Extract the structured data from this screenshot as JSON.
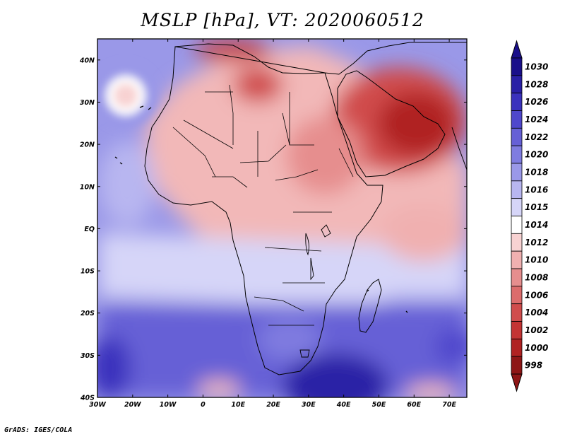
{
  "title": "MSLP [hPa], VT: 2020060512",
  "credit": "GrADS: IGES/COLA",
  "map": {
    "projection": "latlon",
    "lon_range": [
      -30,
      75
    ],
    "lat_range": [
      -40,
      45
    ],
    "x_ticks": [
      "30W",
      "20W",
      "10W",
      "0",
      "10E",
      "20E",
      "30E",
      "40E",
      "50E",
      "60E",
      "70E"
    ],
    "x_tick_values": [
      -30,
      -20,
      -10,
      0,
      10,
      20,
      30,
      40,
      50,
      60,
      70
    ],
    "y_ticks": [
      "40N",
      "30N",
      "20N",
      "10N",
      "EQ",
      "10S",
      "20S",
      "30S",
      "40S"
    ],
    "y_tick_values": [
      40,
      30,
      20,
      10,
      0,
      -10,
      -20,
      -30,
      -40
    ]
  },
  "colorbar": {
    "labels": [
      "1030",
      "1028",
      "1026",
      "1024",
      "1022",
      "1020",
      "1018",
      "1016",
      "1015",
      "1014",
      "1012",
      "1010",
      "1008",
      "1006",
      "1004",
      "1002",
      "1000",
      "998"
    ],
    "colors": [
      "#1a0f8a",
      "#2a20a6",
      "#3b32bd",
      "#4f47cc",
      "#6660d6",
      "#7f7ce0",
      "#9a98e8",
      "#b8b6f0",
      "#d6d5f8",
      "#ffffff",
      "#f8d2d2",
      "#f0b0b0",
      "#e68e8e",
      "#dc6c6c",
      "#d04c4c",
      "#c43434",
      "#b02222",
      "#8e1616"
    ]
  },
  "features": [
    {
      "name": "azores-high",
      "lon": -27,
      "lat": 32
    },
    {
      "name": "arabian-heat-low",
      "lon": 57,
      "lat": 25
    },
    {
      "name": "southern-ocean-high",
      "lon": 38,
      "lat": -37
    },
    {
      "name": "madagascar",
      "lon": 46.8,
      "lat": -19
    }
  ]
}
